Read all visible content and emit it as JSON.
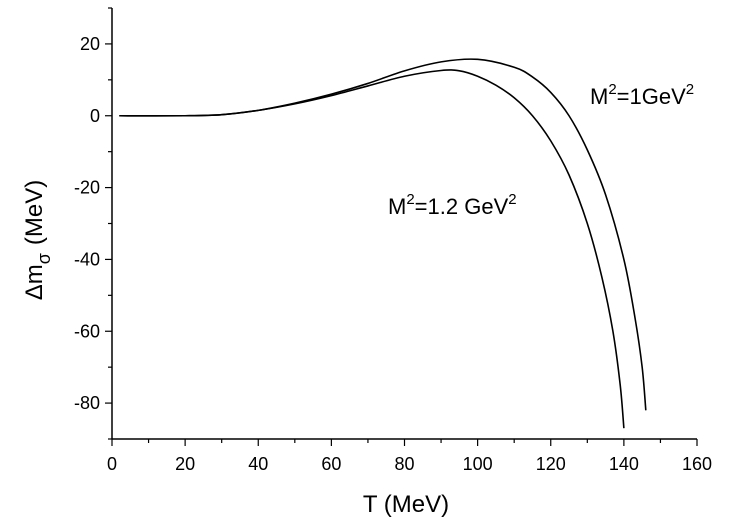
{
  "chart_data": {
    "type": "line",
    "xlabel": "T  (MeV)",
    "ylabel": {
      "prefix": "Δm",
      "subscript": "σ",
      "suffix": "(MeV)"
    },
    "xlim": [
      0,
      160
    ],
    "ylim": [
      -90,
      30
    ],
    "x_ticks": [
      0,
      20,
      40,
      60,
      80,
      100,
      120,
      140,
      160
    ],
    "y_ticks": [
      -80,
      -60,
      -40,
      -20,
      0,
      20
    ],
    "grid": false,
    "series": [
      {
        "name": "M2=1GeV2",
        "x": [
          2,
          20,
          30,
          40,
          50,
          60,
          70,
          80,
          90,
          100,
          110,
          115,
          120,
          125,
          130,
          135,
          140,
          143,
          145,
          146
        ],
        "y": [
          0,
          0,
          0.3,
          1.5,
          3.5,
          6.0,
          9.0,
          12.5,
          15.0,
          15.7,
          13.5,
          10.8,
          6.5,
          0.0,
          -9.5,
          -22.0,
          -40.0,
          -56.0,
          -70.0,
          -82.0
        ]
      },
      {
        "name": "M2=1.2 GeV2",
        "x": [
          2,
          20,
          30,
          40,
          50,
          60,
          70,
          80,
          90,
          95,
          100,
          105,
          110,
          115,
          120,
          125,
          130,
          134,
          137,
          139,
          140
        ],
        "y": [
          0,
          0,
          0.3,
          1.5,
          3.3,
          5.6,
          8.3,
          11.0,
          12.6,
          12.5,
          11.0,
          8.5,
          5.0,
          0.0,
          -7.0,
          -16.5,
          -30.0,
          -45.0,
          -60.0,
          -75.0,
          -87.0
        ]
      }
    ],
    "annotations": [
      {
        "series": 0,
        "base": "M",
        "sup1": "2",
        "mid": "=1GeV",
        "sup2": "2"
      },
      {
        "series": 1,
        "base": "M",
        "sup1": "2",
        "mid": "=1.2 GeV",
        "sup2": "2"
      }
    ]
  }
}
